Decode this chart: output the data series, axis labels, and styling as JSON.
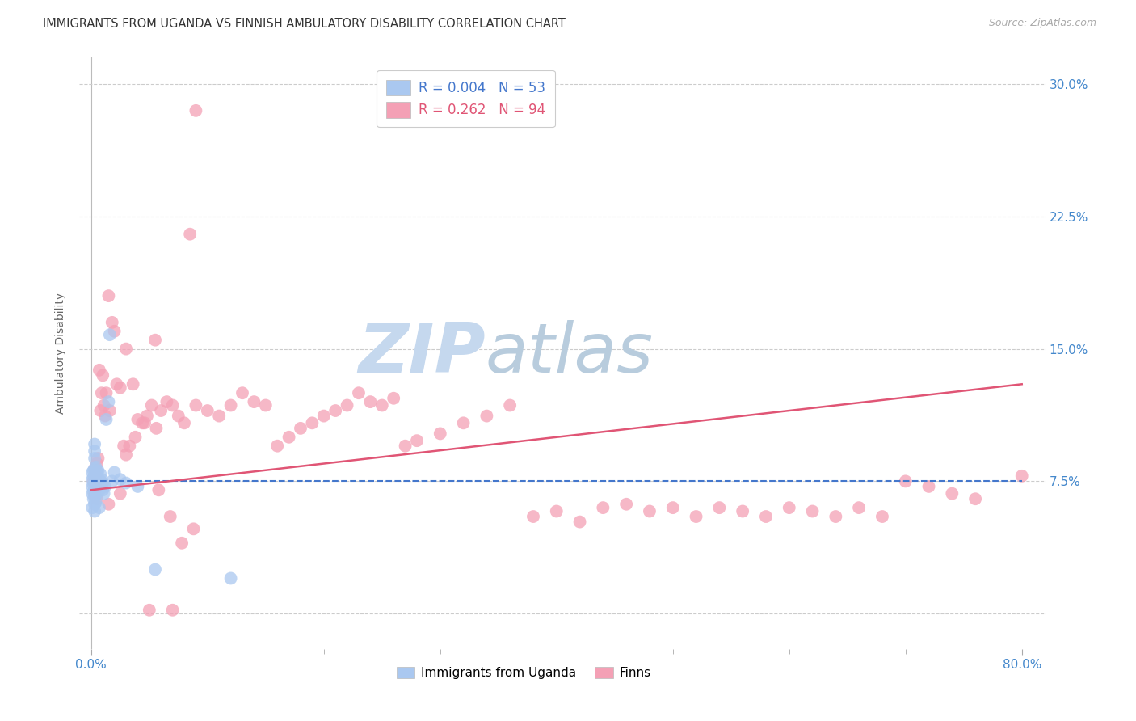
{
  "title": "IMMIGRANTS FROM UGANDA VS FINNISH AMBULATORY DISABILITY CORRELATION CHART",
  "source": "Source: ZipAtlas.com",
  "ylabel_label": "Ambulatory Disability",
  "xlim": [
    0.0,
    0.82
  ],
  "ylim": [
    -0.02,
    0.315
  ],
  "yticks": [
    0.0,
    0.075,
    0.15,
    0.225,
    0.3
  ],
  "legend_r1": "R = 0.004",
  "legend_n1": "N = 53",
  "legend_r2": "R = 0.262",
  "legend_n2": "N = 94",
  "uganda_color": "#aac8f0",
  "finns_color": "#f4a0b5",
  "uganda_line_color": "#4477cc",
  "finns_line_color": "#e05575",
  "grid_color": "#cccccc",
  "axis_label_color": "#4488cc",
  "watermark_color": "#d0e4f4",
  "uganda_trend_start_y": 0.075,
  "uganda_trend_end_y": 0.075,
  "finns_trend_start_y": 0.07,
  "finns_trend_end_y": 0.13,
  "uganda_x": [
    0.001,
    0.001,
    0.001,
    0.001,
    0.001,
    0.002,
    0.002,
    0.002,
    0.002,
    0.002,
    0.003,
    0.003,
    0.003,
    0.003,
    0.003,
    0.003,
    0.003,
    0.003,
    0.003,
    0.003,
    0.004,
    0.004,
    0.004,
    0.004,
    0.004,
    0.005,
    0.005,
    0.005,
    0.005,
    0.006,
    0.006,
    0.006,
    0.007,
    0.007,
    0.007,
    0.008,
    0.008,
    0.009,
    0.009,
    0.01,
    0.01,
    0.011,
    0.012,
    0.013,
    0.015,
    0.016,
    0.018,
    0.02,
    0.025,
    0.03,
    0.04,
    0.055,
    0.12
  ],
  "uganda_y": [
    0.068,
    0.072,
    0.076,
    0.08,
    0.06,
    0.069,
    0.073,
    0.077,
    0.081,
    0.065,
    0.07,
    0.074,
    0.078,
    0.082,
    0.066,
    0.088,
    0.092,
    0.096,
    0.058,
    0.062,
    0.071,
    0.075,
    0.079,
    0.083,
    0.063,
    0.072,
    0.076,
    0.08,
    0.068,
    0.073,
    0.077,
    0.081,
    0.07,
    0.074,
    0.06,
    0.075,
    0.079,
    0.072,
    0.076,
    0.07,
    0.074,
    0.068,
    0.072,
    0.11,
    0.12,
    0.158,
    0.075,
    0.08,
    0.076,
    0.074,
    0.072,
    0.025,
    0.02
  ],
  "finns_x": [
    0.002,
    0.003,
    0.003,
    0.004,
    0.004,
    0.005,
    0.005,
    0.006,
    0.007,
    0.008,
    0.009,
    0.01,
    0.011,
    0.012,
    0.013,
    0.015,
    0.016,
    0.018,
    0.02,
    0.022,
    0.025,
    0.028,
    0.03,
    0.033,
    0.036,
    0.04,
    0.044,
    0.048,
    0.052,
    0.056,
    0.06,
    0.065,
    0.07,
    0.075,
    0.08,
    0.09,
    0.1,
    0.11,
    0.12,
    0.13,
    0.14,
    0.15,
    0.16,
    0.17,
    0.18,
    0.19,
    0.2,
    0.21,
    0.22,
    0.23,
    0.24,
    0.25,
    0.26,
    0.27,
    0.28,
    0.3,
    0.32,
    0.34,
    0.36,
    0.38,
    0.4,
    0.42,
    0.44,
    0.46,
    0.48,
    0.5,
    0.52,
    0.54,
    0.56,
    0.58,
    0.6,
    0.62,
    0.64,
    0.66,
    0.68,
    0.7,
    0.72,
    0.74,
    0.76,
    0.8,
    0.03,
    0.05,
    0.07,
    0.09,
    0.055,
    0.085,
    0.015,
    0.025,
    0.038,
    0.046,
    0.058,
    0.068,
    0.078,
    0.088
  ],
  "finns_y": [
    0.075,
    0.082,
    0.068,
    0.072,
    0.078,
    0.085,
    0.065,
    0.088,
    0.138,
    0.115,
    0.125,
    0.135,
    0.118,
    0.112,
    0.125,
    0.18,
    0.115,
    0.165,
    0.16,
    0.13,
    0.128,
    0.095,
    0.09,
    0.095,
    0.13,
    0.11,
    0.108,
    0.112,
    0.118,
    0.105,
    0.115,
    0.12,
    0.118,
    0.112,
    0.108,
    0.118,
    0.115,
    0.112,
    0.118,
    0.125,
    0.12,
    0.118,
    0.095,
    0.1,
    0.105,
    0.108,
    0.112,
    0.115,
    0.118,
    0.125,
    0.12,
    0.118,
    0.122,
    0.095,
    0.098,
    0.102,
    0.108,
    0.112,
    0.118,
    0.055,
    0.058,
    0.052,
    0.06,
    0.062,
    0.058,
    0.06,
    0.055,
    0.06,
    0.058,
    0.055,
    0.06,
    0.058,
    0.055,
    0.06,
    0.055,
    0.075,
    0.072,
    0.068,
    0.065,
    0.078,
    0.15,
    0.002,
    0.002,
    0.285,
    0.155,
    0.215,
    0.062,
    0.068,
    0.1,
    0.108,
    0.07,
    0.055,
    0.04,
    0.048
  ]
}
